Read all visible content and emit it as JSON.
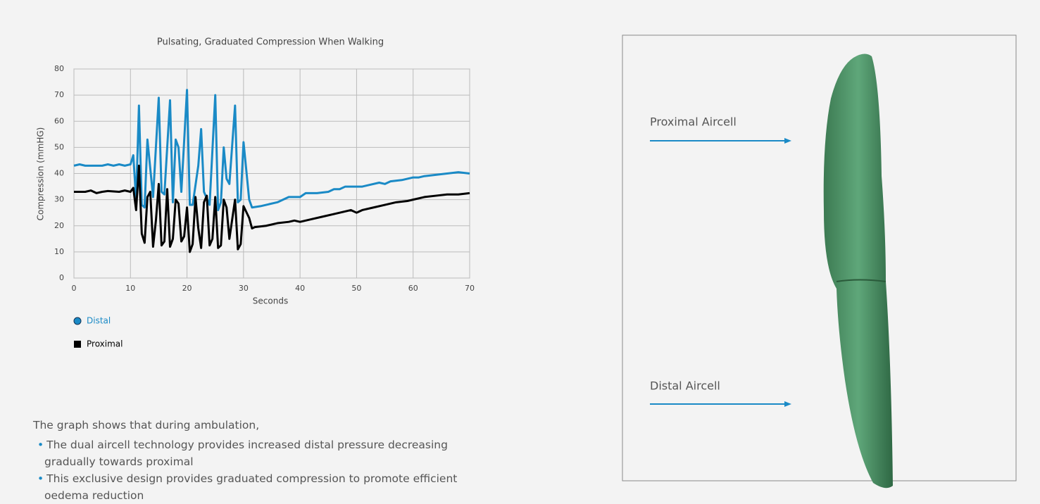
{
  "chart_data": {
    "type": "line",
    "title": "Pulsating, Graduated Compression When Walking",
    "xlabel": "Seconds",
    "ylabel": "Compression (mmHG)",
    "xlim": [
      0,
      70
    ],
    "xticks": [
      0,
      10,
      20,
      30,
      40,
      50,
      60,
      70
    ],
    "ylim": [
      0,
      80
    ],
    "yticks": [
      0,
      10,
      20,
      30,
      40,
      50,
      60,
      70,
      80
    ],
    "grid": true,
    "series": [
      {
        "name": "Distal",
        "color": "#1a8ac6",
        "marker": "circle",
        "x": [
          0,
          1,
          2,
          5,
          6,
          7,
          8,
          9,
          10,
          10.5,
          11,
          11.5,
          12,
          12.5,
          13,
          14,
          15,
          15.5,
          16,
          17,
          17.5,
          18,
          18.5,
          19,
          20,
          20.5,
          21,
          22,
          22.5,
          23,
          24,
          25,
          25.5,
          26,
          26.5,
          27,
          27.5,
          28.5,
          29,
          29.5,
          30,
          31,
          31.5,
          33,
          34,
          36,
          37,
          38,
          40,
          41,
          43,
          45,
          46,
          47,
          48,
          51,
          52,
          54,
          55,
          56,
          58,
          60,
          61,
          62,
          64,
          66,
          68,
          70
        ],
        "values": [
          43,
          43.5,
          43,
          43,
          43.5,
          43,
          43.5,
          43,
          43.5,
          47,
          30,
          66,
          28,
          27,
          53,
          31,
          69,
          33,
          32,
          68,
          29,
          53,
          50,
          33,
          72,
          28,
          28,
          43,
          57,
          33,
          28,
          70,
          26,
          29,
          50,
          38,
          36,
          66,
          29,
          30,
          52,
          30,
          27,
          27.5,
          28,
          29,
          30,
          31,
          31,
          32.5,
          32.5,
          33,
          34,
          34,
          35,
          35,
          35.5,
          36.5,
          36,
          37,
          37.5,
          38.5,
          38.5,
          39,
          39.5,
          40,
          40.5,
          40
        ]
      },
      {
        "name": "Proximal",
        "color": "#000000",
        "marker": "square",
        "x": [
          0,
          2,
          3,
          4,
          5,
          6,
          8,
          9,
          10,
          10.5,
          11,
          11.5,
          12,
          12.5,
          13,
          13.5,
          14,
          14.5,
          15,
          15.5,
          16,
          16.5,
          17,
          17.5,
          18,
          18.5,
          19,
          19.5,
          20,
          20.5,
          21,
          21.5,
          22,
          22.5,
          23,
          23.5,
          24,
          24.5,
          25,
          25.5,
          26,
          26.5,
          27,
          27.5,
          28.5,
          29,
          29.5,
          30,
          31,
          31.5,
          32,
          34,
          36,
          38,
          39,
          40,
          42,
          44,
          46,
          48,
          49,
          50,
          51,
          53,
          55,
          57,
          59,
          60,
          62,
          64,
          66,
          68,
          70
        ],
        "values": [
          33,
          33,
          33.5,
          32.5,
          33,
          33.3,
          33,
          33.5,
          33,
          34.5,
          26,
          43,
          17,
          13.5,
          31,
          33,
          12,
          22,
          36,
          12.5,
          14,
          34,
          12,
          15,
          30,
          28.5,
          14,
          16,
          27,
          10,
          13,
          31,
          19,
          11.5,
          29,
          31.5,
          12.5,
          15,
          31,
          11.5,
          12.5,
          30,
          27,
          15,
          30,
          11,
          13,
          27.5,
          23,
          19,
          19.5,
          20,
          21,
          21.5,
          22,
          21.5,
          22.5,
          23.5,
          24.5,
          25.5,
          26,
          25,
          26,
          27,
          28,
          29,
          29.5,
          30,
          31,
          31.5,
          32,
          32,
          32.5
        ]
      }
    ]
  },
  "text": {
    "intro": "The graph shows that during ambulation,",
    "bullets": [
      "The dual aircell technology provides increased distal pressure decreasing gradually towards proximal",
      "This exclusive design provides graduated compression to promote efficient oedema reduction"
    ]
  },
  "figure": {
    "labels": [
      "Proximal Aircell",
      "Distal Aircell"
    ]
  }
}
